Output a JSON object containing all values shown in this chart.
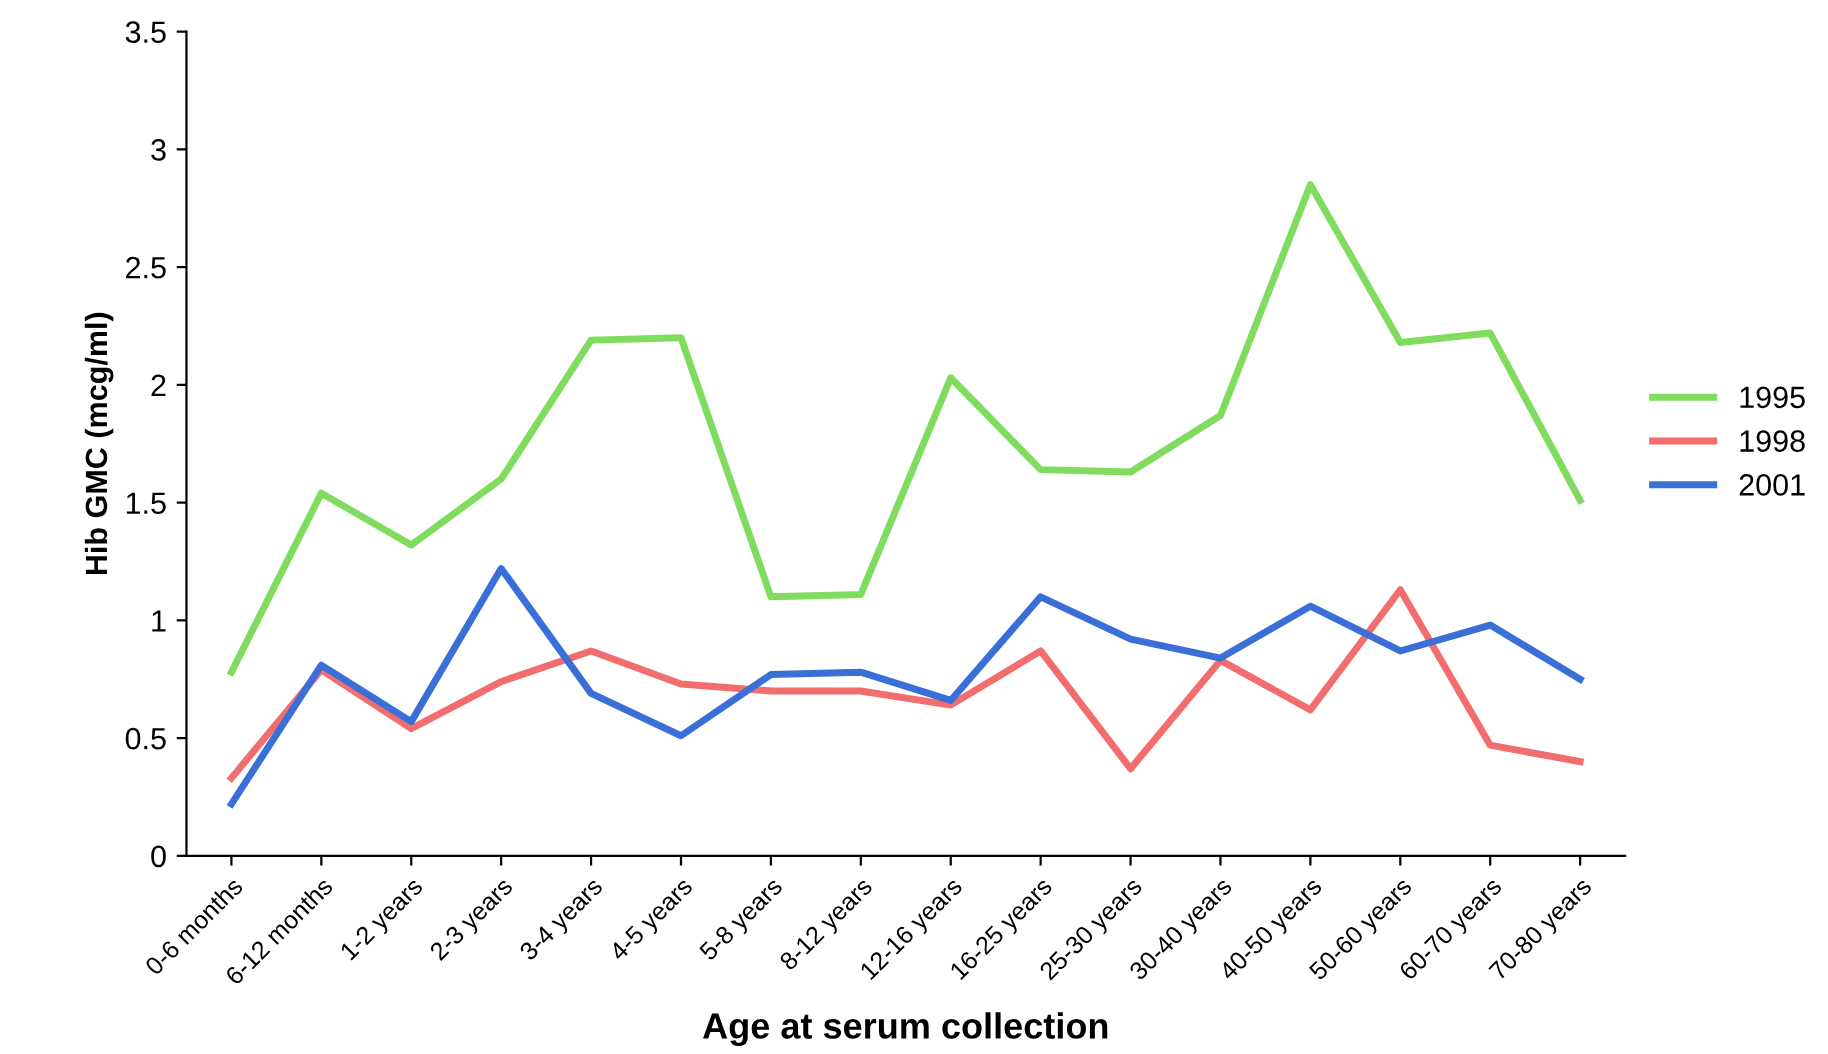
{
  "chart_data": {
    "type": "line",
    "xlabel": "Age at serum collection",
    "ylabel": "Hib GMC (mcg/ml)",
    "categories": [
      "0-6 months",
      "6-12 months",
      "1-2 years",
      "2-3 years",
      "3-4 years",
      "4-5 years",
      "5-8 years",
      "8-12 years",
      "12-16 years",
      "16-25 years",
      "25-30 years",
      "30-40 years",
      "40-50 years",
      "50-60 years",
      "60-70 years",
      "70-80 years"
    ],
    "series": [
      {
        "name": "1995",
        "color": "#7fdc5e",
        "values": [
          0.78,
          1.54,
          1.32,
          1.6,
          2.19,
          2.2,
          1.1,
          1.11,
          2.03,
          1.64,
          1.63,
          1.87,
          2.85,
          2.18,
          2.22,
          1.51
        ]
      },
      {
        "name": "1998",
        "color": "#f26d6d",
        "values": [
          0.33,
          0.79,
          0.54,
          0.74,
          0.87,
          0.73,
          0.7,
          0.7,
          0.64,
          0.87,
          0.37,
          0.83,
          0.62,
          1.13,
          0.47,
          0.4
        ]
      },
      {
        "name": "2001",
        "color": "#3a6fd8",
        "values": [
          0.22,
          0.81,
          0.57,
          1.22,
          0.69,
          0.51,
          0.77,
          0.78,
          0.66,
          1.1,
          0.92,
          0.84,
          1.06,
          0.87,
          0.98,
          0.75
        ]
      }
    ],
    "ylim": [
      0,
      3.5
    ],
    "yticks": [
      0,
      0.5,
      1,
      1.5,
      2,
      2.5,
      3,
      3.5
    ],
    "legend": "right",
    "grid": false,
    "marker": "none",
    "line_style": "solid"
  }
}
